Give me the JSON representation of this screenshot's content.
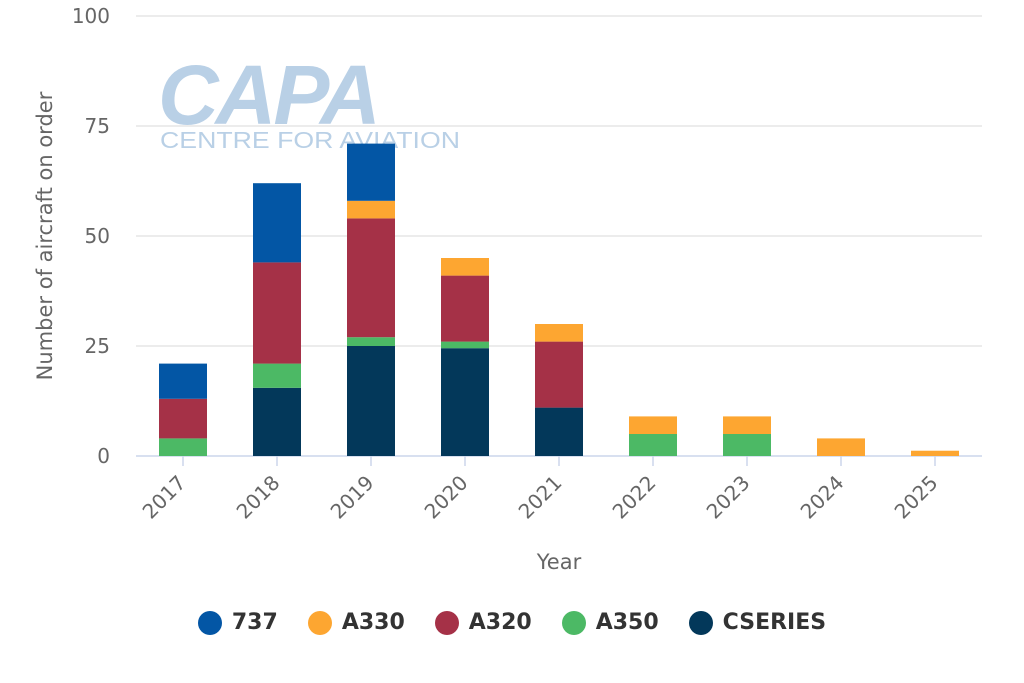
{
  "watermark": {
    "main": "CAPA",
    "sub": "CENTRE FOR AVIATION",
    "color": "#b9d0e6"
  },
  "chart_data": {
    "type": "bar",
    "stacked": true,
    "categories": [
      "2017",
      "2018",
      "2019",
      "2020",
      "2021",
      "2022",
      "2023",
      "2024",
      "2025"
    ],
    "series": [
      {
        "name": "CSERIES",
        "color": "#03385a",
        "values": [
          0,
          15.5,
          25,
          24.5,
          11,
          0,
          0,
          0,
          0
        ]
      },
      {
        "name": "A350",
        "color": "#4cb965",
        "values": [
          4,
          5.5,
          2,
          1.5,
          0,
          5,
          5,
          0,
          0
        ]
      },
      {
        "name": "A320",
        "color": "#a53147",
        "values": [
          9,
          23,
          27,
          15,
          15,
          0,
          0,
          0,
          0
        ]
      },
      {
        "name": "A330",
        "color": "#fda631",
        "values": [
          0,
          0,
          4,
          4,
          4,
          4,
          4,
          4,
          1.2
        ]
      },
      {
        "name": "737",
        "color": "#0356a5",
        "values": [
          8,
          18,
          13,
          0,
          0,
          0,
          0,
          0,
          0
        ]
      }
    ],
    "legend_order": [
      "737",
      "A330",
      "A320",
      "A350",
      "CSERIES"
    ],
    "xlabel": "Year",
    "ylabel": "Number of aircraft on order",
    "yticks": [
      0,
      25,
      50,
      75,
      100
    ],
    "ylim": [
      0,
      100
    ],
    "grid": true,
    "legend_position": "bottom"
  }
}
